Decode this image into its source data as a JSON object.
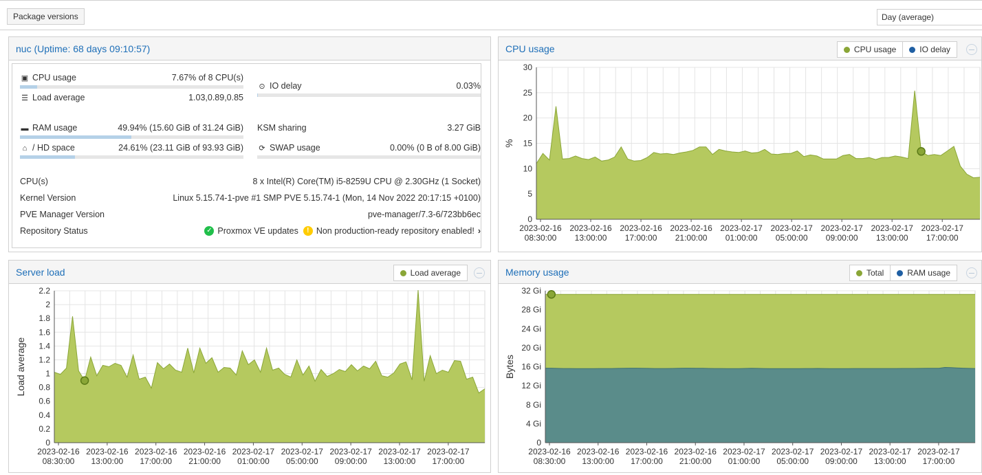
{
  "toolbar": {
    "package_versions_label": "Package versions",
    "timeframe_value": "Day (average)"
  },
  "status": {
    "title": "nuc (Uptime: 68 days 09:10:57)",
    "cpu": {
      "label": "CPU usage",
      "value": "7.67% of 8 CPU(s)",
      "fraction": 0.0767
    },
    "load": {
      "label": "Load average",
      "value": "1.03,0.89,0.85"
    },
    "iodelay": {
      "label": "IO delay",
      "value": "0.03%",
      "fraction": 0.0003
    },
    "ram": {
      "label": "RAM usage",
      "value": "49.94% (15.60 GiB of 31.24 GiB)",
      "fraction": 0.4994
    },
    "ksm": {
      "label": "KSM sharing",
      "value": "3.27 GiB"
    },
    "hd": {
      "label": "/ HD space",
      "value": "24.61% (23.11 GiB of 93.93 GiB)",
      "fraction": 0.2461
    },
    "swap": {
      "label": "SWAP usage",
      "value": "0.00% (0 B of 8.00 GiB)",
      "fraction": 0
    },
    "cpus": {
      "label": "CPU(s)",
      "value": "8 x Intel(R) Core(TM) i5-8259U CPU @ 2.30GHz (1 Socket)"
    },
    "kernel": {
      "label": "Kernel Version",
      "value": "Linux 5.15.74-1-pve #1 SMP PVE 5.15.74-1 (Mon, 14 Nov 2022 20:17:15 +0100)"
    },
    "pve": {
      "label": "PVE Manager Version",
      "value": "pve-manager/7.3-6/723bb6ec"
    },
    "repo": {
      "label": "Repository Status",
      "ok_text": "Proxmox VE updates",
      "warn_text": "Non production-ready repository enabled!"
    }
  },
  "colors": {
    "green": "#b5c95f",
    "green_line": "#8aa637",
    "teal": "#5a8c8a",
    "teal_line": "#3d6f72",
    "link": "#1e6fb8",
    "ok": "#21bf4b",
    "warn": "#ffcc00"
  },
  "chart_data": [
    {
      "id": "cpu",
      "type": "area",
      "title": "CPU usage",
      "ylabel": "%",
      "ylim": [
        0,
        30
      ],
      "yticks": [
        "0",
        "5",
        "10",
        "15",
        "20",
        "25",
        "30"
      ],
      "ytick_values": [
        0,
        5,
        10,
        15,
        20,
        25,
        30
      ],
      "xticks": [
        [
          "2023-02-16",
          "08:30:00"
        ],
        [
          "2023-02-16",
          "13:00:00"
        ],
        [
          "2023-02-16",
          "17:00:00"
        ],
        [
          "2023-02-16",
          "21:00:00"
        ],
        [
          "2023-02-17",
          "01:00:00"
        ],
        [
          "2023-02-17",
          "05:00:00"
        ],
        [
          "2023-02-17",
          "09:00:00"
        ],
        [
          "2023-02-17",
          "13:00:00"
        ],
        [
          "2023-02-17",
          "17:00:00"
        ]
      ],
      "legend": [
        "CPU usage",
        "IO delay"
      ],
      "series": [
        {
          "name": "CPU usage",
          "values": [
            11,
            13,
            11.7,
            22.3,
            11.9,
            12,
            12.5,
            12,
            11.8,
            12.3,
            11.5,
            11.7,
            12.3,
            14.3,
            11.9,
            11.5,
            11.6,
            12.2,
            13.2,
            12.9,
            13,
            12.8,
            13.1,
            13.3,
            13.6,
            14.3,
            14.3,
            12.8,
            13.8,
            13.5,
            13.3,
            13.2,
            13.5,
            13.1,
            13.2,
            13.8,
            12.9,
            12.8,
            13,
            13,
            13.5,
            12.4,
            12.7,
            12.5,
            11.9,
            11.9,
            11.9,
            12.6,
            12.8,
            12,
            12,
            12.2,
            11.8,
            12.2,
            12.2,
            12.5,
            12.3,
            12,
            25.4,
            13.4,
            12.6,
            12.8,
            12.6,
            13.5,
            14.4,
            10.5,
            8.9,
            8.2,
            8.3
          ]
        }
      ],
      "marker_index": 59
    },
    {
      "id": "load",
      "type": "area",
      "title": "Server load",
      "ylabel": "Load average",
      "ylim": [
        0,
        2.2
      ],
      "yticks": [
        "0",
        "0.2",
        "0.4",
        "0.6",
        "0.8",
        "1",
        "1.2",
        "1.4",
        "1.6",
        "1.8",
        "2",
        "2.2"
      ],
      "ytick_values": [
        0,
        0.2,
        0.4,
        0.6,
        0.8,
        1,
        1.2,
        1.4,
        1.6,
        1.8,
        2,
        2.2
      ],
      "xticks": [
        [
          "2023-02-16",
          "08:30:00"
        ],
        [
          "2023-02-16",
          "13:00:00"
        ],
        [
          "2023-02-16",
          "17:00:00"
        ],
        [
          "2023-02-16",
          "21:00:00"
        ],
        [
          "2023-02-17",
          "01:00:00"
        ],
        [
          "2023-02-17",
          "05:00:00"
        ],
        [
          "2023-02-17",
          "09:00:00"
        ],
        [
          "2023-02-17",
          "13:00:00"
        ],
        [
          "2023-02-17",
          "17:00:00"
        ]
      ],
      "legend": [
        "Load average"
      ],
      "series": [
        {
          "name": "Load average",
          "values": [
            1.02,
            0.99,
            1.08,
            1.83,
            1.04,
            0.9,
            1.24,
            0.97,
            1.12,
            1.1,
            1.15,
            1.12,
            0.95,
            1.27,
            0.92,
            0.95,
            0.79,
            1.16,
            1.07,
            1.14,
            1.05,
            1.02,
            1.37,
            1.01,
            1.37,
            1.15,
            1.23,
            1.02,
            1.09,
            1.08,
            0.98,
            1.33,
            1.13,
            1.2,
            1.02,
            1.37,
            1.05,
            1.08,
            0.99,
            0.95,
            1.2,
            0.98,
            1.11,
            0.89,
            1.06,
            0.96,
            1,
            1.06,
            1.03,
            1.13,
            1.04,
            1.11,
            1.07,
            1.18,
            0.97,
            0.95,
            1.01,
            1.14,
            1.17,
            0.91,
            2.21,
            0.89,
            1.26,
            1,
            1.05,
            1.02,
            1.19,
            1.18,
            0.92,
            0.95,
            0.72,
            0.78
          ]
        }
      ],
      "marker_index": 5
    },
    {
      "id": "mem",
      "type": "area",
      "title": "Memory usage",
      "ylabel": "Bytes",
      "ylim": [
        0,
        32
      ],
      "yticks": [
        "0",
        "4 Gi",
        "8 Gi",
        "12 Gi",
        "16 Gi",
        "20 Gi",
        "24 Gi",
        "28 Gi",
        "32 Gi"
      ],
      "ytick_values": [
        0,
        4,
        8,
        12,
        16,
        20,
        24,
        28,
        32
      ],
      "xticks": [
        [
          "2023-02-16",
          "08:30:00"
        ],
        [
          "2023-02-16",
          "13:00:00"
        ],
        [
          "2023-02-16",
          "17:00:00"
        ],
        [
          "2023-02-16",
          "21:00:00"
        ],
        [
          "2023-02-17",
          "01:00:00"
        ],
        [
          "2023-02-17",
          "05:00:00"
        ],
        [
          "2023-02-17",
          "09:00:00"
        ],
        [
          "2023-02-17",
          "13:00:00"
        ],
        [
          "2023-02-17",
          "17:00:00"
        ]
      ],
      "legend": [
        "Total",
        "RAM usage"
      ],
      "series": [
        {
          "name": "Total",
          "values": [
            31.24,
            31.24,
            31.24,
            31.24,
            31.24,
            31.24,
            31.24,
            31.24,
            31.24,
            31.24,
            31.24,
            31.24,
            31.24,
            31.24,
            31.24,
            31.24,
            31.24,
            31.24,
            31.24,
            31.24,
            31.24,
            31.24,
            31.24,
            31.24,
            31.24,
            31.24,
            31.24,
            31.24,
            31.24,
            31.24,
            31.24,
            31.24,
            31.24,
            31.24,
            31.24,
            31.24,
            31.24,
            31.24,
            31.24,
            31.24,
            31.24,
            31.24,
            31.24,
            31.24,
            31.24,
            31.24,
            31.24,
            31.24,
            31.24,
            31.24,
            31.24,
            31.24,
            31.24,
            31.24,
            31.24,
            31.24,
            31.24,
            31.24,
            31.24,
            31.24,
            31.24,
            31.24,
            31.24,
            31.24,
            31.24,
            31.24,
            31.24,
            31.24,
            31.24,
            31.24,
            31.24,
            31.24
          ]
        },
        {
          "name": "RAM usage",
          "values": [
            15.7,
            15.7,
            15.65,
            15.62,
            15.62,
            15.6,
            15.6,
            15.6,
            15.6,
            15.62,
            15.63,
            15.62,
            15.65,
            15.68,
            15.7,
            15.7,
            15.68,
            15.65,
            15.63,
            15.63,
            15.62,
            15.64,
            15.66,
            15.7,
            15.7,
            15.68,
            15.66,
            15.64,
            15.63,
            15.62,
            15.6,
            15.6,
            15.61,
            15.64,
            15.68,
            15.65,
            15.62,
            15.6,
            15.6,
            15.6,
            15.6,
            15.6,
            15.6,
            15.62,
            15.63,
            15.64,
            15.62,
            15.6,
            15.6,
            15.6,
            15.61,
            15.62,
            15.62,
            15.62,
            15.62,
            15.62,
            15.62,
            15.62,
            15.63,
            15.64,
            15.64,
            15.64,
            15.65,
            15.66,
            15.66,
            15.66,
            15.85,
            15.82,
            15.75,
            15.7,
            15.65,
            15.62
          ]
        }
      ],
      "marker_index": 1
    }
  ]
}
